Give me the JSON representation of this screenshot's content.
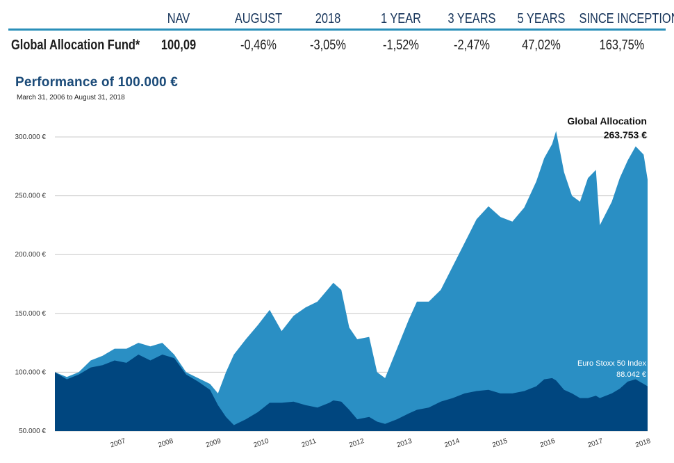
{
  "table": {
    "headers": [
      "",
      "NAV",
      "AUGUST",
      "2018",
      "1 YEAR",
      "3 YEARS",
      "5 YEARS",
      "SINCE INCEPTION"
    ],
    "row": [
      "Global Allocation Fund*",
      "100,09",
      "-0,46%",
      "-3,05%",
      "-1,52%",
      "-2,47%",
      "47,02%",
      "163,75%"
    ]
  },
  "chart": {
    "title": "Performance of 100.000 €",
    "subtitle": "March 31, 2006 to August 31, 2018"
  },
  "colors": {
    "global_allocation": "#2a8fc4",
    "euro_stoxx": "#00467f",
    "gridline": "#c8c8c8",
    "table_rule": "#2a8fb9"
  },
  "chart_data": {
    "type": "area",
    "title": "Performance of 100.000 €",
    "subtitle": "March 31, 2006 to August 31, 2018",
    "xlabel": "",
    "ylabel": "",
    "x_ticks": [
      "2007",
      "2008",
      "2009",
      "2010",
      "2011",
      "2012",
      "2013",
      "2014",
      "2015",
      "2016",
      "2017",
      "2018"
    ],
    "y_ticks": [
      "50.000 €",
      "100.000 €",
      "150.000 €",
      "200.000 €",
      "250.000 €",
      "300.000 €"
    ],
    "ylim": [
      50000,
      300000
    ],
    "xlim": [
      "2006-03",
      "2018-08"
    ],
    "grid": true,
    "annotations": {
      "global_allocation": {
        "name": "Global Allocation",
        "value": "263.753 €"
      },
      "euro_stoxx": {
        "name": "Euro Stoxx 50 Index",
        "value": "88.042 €"
      }
    },
    "series": [
      {
        "name": "Global Allocation",
        "points": [
          [
            "2006-03",
            100000
          ],
          [
            "2006-06",
            96000
          ],
          [
            "2006-09",
            100000
          ],
          [
            "2006-12",
            110000
          ],
          [
            "2007-03",
            114000
          ],
          [
            "2007-06",
            120000
          ],
          [
            "2007-09",
            120000
          ],
          [
            "2007-12",
            125000
          ],
          [
            "2008-03",
            122000
          ],
          [
            "2008-06",
            125000
          ],
          [
            "2008-09",
            115000
          ],
          [
            "2008-12",
            100000
          ],
          [
            "2009-03",
            95000
          ],
          [
            "2009-06",
            90000
          ],
          [
            "2009-08",
            82000
          ],
          [
            "2009-10",
            100000
          ],
          [
            "2009-12",
            115000
          ],
          [
            "2010-03",
            128000
          ],
          [
            "2010-06",
            140000
          ],
          [
            "2010-09",
            153000
          ],
          [
            "2010-12",
            135000
          ],
          [
            "2011-03",
            148000
          ],
          [
            "2011-06",
            155000
          ],
          [
            "2011-09",
            160000
          ],
          [
            "2011-12",
            172000
          ],
          [
            "2012-01",
            176000
          ],
          [
            "2012-03",
            170000
          ],
          [
            "2012-05",
            138000
          ],
          [
            "2012-07",
            128000
          ],
          [
            "2012-10",
            130000
          ],
          [
            "2012-12",
            100000
          ],
          [
            "2013-02",
            95000
          ],
          [
            "2013-05",
            120000
          ],
          [
            "2013-08",
            145000
          ],
          [
            "2013-10",
            160000
          ],
          [
            "2014-01",
            160000
          ],
          [
            "2014-04",
            170000
          ],
          [
            "2014-07",
            190000
          ],
          [
            "2014-10",
            210000
          ],
          [
            "2015-01",
            230000
          ],
          [
            "2015-04",
            241000
          ],
          [
            "2015-07",
            232000
          ],
          [
            "2015-10",
            228000
          ],
          [
            "2016-01",
            240000
          ],
          [
            "2016-04",
            262000
          ],
          [
            "2016-06",
            282000
          ],
          [
            "2016-08",
            294000
          ],
          [
            "2016-09",
            305000
          ],
          [
            "2016-11",
            270000
          ],
          [
            "2017-01",
            250000
          ],
          [
            "2017-03",
            245000
          ],
          [
            "2017-05",
            265000
          ],
          [
            "2017-07",
            272000
          ],
          [
            "2017-08",
            225000
          ],
          [
            "2017-11",
            245000
          ],
          [
            "2018-01",
            265000
          ],
          [
            "2018-03",
            280000
          ],
          [
            "2018-05",
            292000
          ],
          [
            "2018-07",
            285000
          ],
          [
            "2018-08",
            263753
          ]
        ]
      },
      {
        "name": "Euro Stoxx 50 Index",
        "points": [
          [
            "2006-03",
            100000
          ],
          [
            "2006-06",
            94000
          ],
          [
            "2006-09",
            98000
          ],
          [
            "2006-12",
            104000
          ],
          [
            "2007-03",
            106000
          ],
          [
            "2007-06",
            110000
          ],
          [
            "2007-09",
            108000
          ],
          [
            "2007-12",
            115000
          ],
          [
            "2008-03",
            110000
          ],
          [
            "2008-06",
            115000
          ],
          [
            "2008-09",
            112000
          ],
          [
            "2008-12",
            98000
          ],
          [
            "2009-03",
            92000
          ],
          [
            "2009-06",
            85000
          ],
          [
            "2009-08",
            72000
          ],
          [
            "2009-10",
            62000
          ],
          [
            "2009-12",
            55000
          ],
          [
            "2010-03",
            60000
          ],
          [
            "2010-06",
            66000
          ],
          [
            "2010-09",
            74000
          ],
          [
            "2010-12",
            74000
          ],
          [
            "2011-03",
            75000
          ],
          [
            "2011-06",
            72000
          ],
          [
            "2011-09",
            70000
          ],
          [
            "2011-12",
            74000
          ],
          [
            "2012-01",
            76000
          ],
          [
            "2012-03",
            75000
          ],
          [
            "2012-05",
            68000
          ],
          [
            "2012-07",
            60000
          ],
          [
            "2012-10",
            62000
          ],
          [
            "2012-12",
            58000
          ],
          [
            "2013-02",
            56000
          ],
          [
            "2013-05",
            60000
          ],
          [
            "2013-08",
            65000
          ],
          [
            "2013-10",
            68000
          ],
          [
            "2014-01",
            70000
          ],
          [
            "2014-04",
            75000
          ],
          [
            "2014-07",
            78000
          ],
          [
            "2014-10",
            82000
          ],
          [
            "2015-01",
            84000
          ],
          [
            "2015-04",
            85000
          ],
          [
            "2015-07",
            82000
          ],
          [
            "2015-10",
            82000
          ],
          [
            "2016-01",
            84000
          ],
          [
            "2016-04",
            88000
          ],
          [
            "2016-06",
            94000
          ],
          [
            "2016-08",
            95000
          ],
          [
            "2016-09",
            93000
          ],
          [
            "2016-11",
            85000
          ],
          [
            "2017-01",
            82000
          ],
          [
            "2017-03",
            78000
          ],
          [
            "2017-05",
            78000
          ],
          [
            "2017-07",
            80000
          ],
          [
            "2017-08",
            78000
          ],
          [
            "2017-11",
            82000
          ],
          [
            "2018-01",
            86000
          ],
          [
            "2018-03",
            92000
          ],
          [
            "2018-05",
            94000
          ],
          [
            "2018-07",
            90000
          ],
          [
            "2018-08",
            88042
          ]
        ]
      }
    ]
  }
}
